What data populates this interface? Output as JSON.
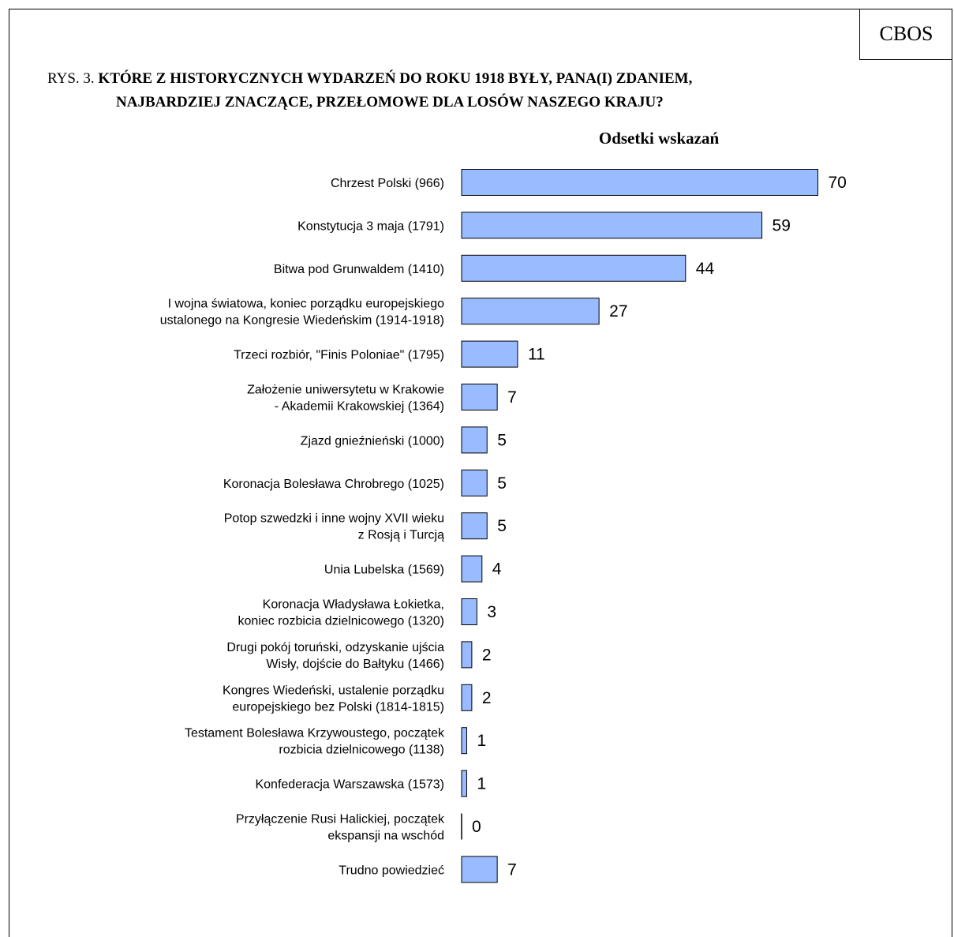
{
  "badge": "CBOS",
  "title": {
    "prefix": "RYS. 3.",
    "line1_bold": "KTÓRE Z HISTORYCZNYCH WYDARZEŃ DO ROKU 1918 BYŁY, PANA(I) ZDANIEM,",
    "line2": "NAJBARDZIEJ ZNACZĄCE, PRZEŁOMOWE DLA LOSÓW NASZEGO KRAJU?"
  },
  "chart_data": {
    "type": "bar",
    "orientation": "horizontal",
    "title": "Odsetki wskazań",
    "bar_color": "#99bbff",
    "grid": false,
    "xlim": [
      0,
      70
    ],
    "categories": [
      [
        "Chrzest Polski (966)"
      ],
      [
        "Konstytucja 3 maja (1791)"
      ],
      [
        "Bitwa pod Grunwaldem (1410)"
      ],
      [
        "I wojna światowa, koniec porządku europejskiego",
        "ustalonego na Kongresie Wiedeńskim (1914-1918)"
      ],
      [
        "Trzeci rozbiór, \"Finis Poloniae\" (1795)"
      ],
      [
        "Założenie uniwersytetu w Krakowie",
        "- Akademii Krakowskiej (1364)"
      ],
      [
        "Zjazd gnieźnieński (1000)"
      ],
      [
        "Koronacja Bolesława Chrobrego (1025)"
      ],
      [
        "Potop szwedzki i inne wojny XVII wieku",
        "z Rosją i Turcją"
      ],
      [
        "Unia Lubelska (1569)"
      ],
      [
        "Koronacja Władysława Łokietka,",
        "koniec rozbicia dzielnicowego (1320)"
      ],
      [
        "Drugi pokój toruński, odzyskanie ujścia",
        "Wisły, dojście do Bałtyku (1466)"
      ],
      [
        "Kongres Wiedeński, ustalenie porządku",
        "europejskiego bez Polski (1814-1815)"
      ],
      [
        "Testament Bolesława Krzywoustego, początek",
        "rozbicia dzielnicowego (1138)"
      ],
      [
        "Konfederacja Warszawska (1573)"
      ],
      [
        "Przyłączenie Rusi Halickiej, początek",
        "ekspansji na wschód"
      ],
      [
        "Trudno powiedzieć"
      ]
    ],
    "values": [
      70,
      59,
      44,
      27,
      11,
      7,
      5,
      5,
      5,
      4,
      3,
      2,
      2,
      1,
      1,
      0,
      7
    ]
  }
}
